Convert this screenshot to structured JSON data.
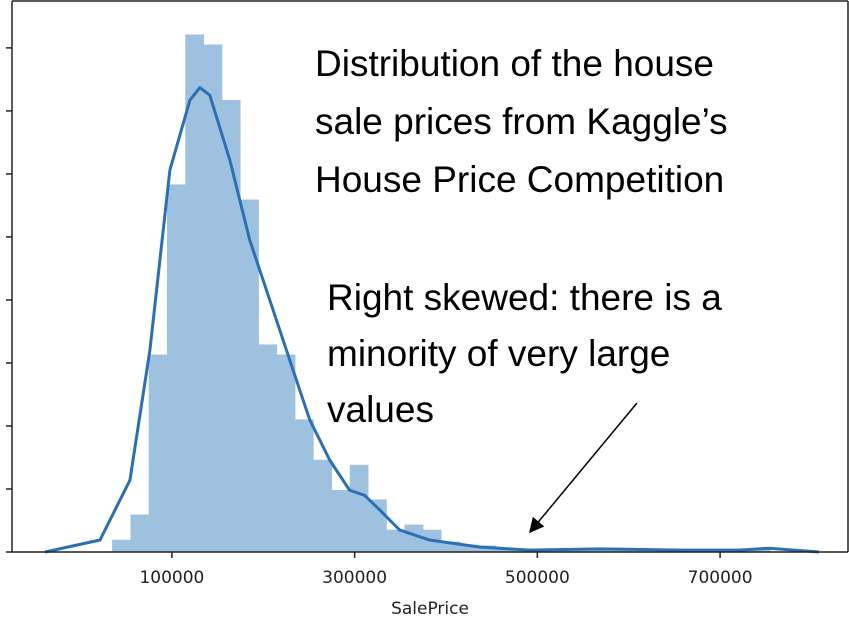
{
  "chart_data": {
    "type": "histogram",
    "xlabel": "SalePrice",
    "bins": [
      34900,
      54900,
      74900,
      94900,
      114900,
      134900,
      154900,
      174900,
      194900,
      214900,
      234900,
      254900,
      274900,
      294900,
      314900,
      334900,
      354900,
      374900,
      394900,
      414900,
      434900,
      454900,
      474900,
      494900,
      514900,
      534900,
      554900,
      574900,
      594900,
      614900,
      634900,
      654900,
      674900,
      694900,
      714900,
      734900,
      754900
    ],
    "values": [
      1.9e-07,
      5.9e-07,
      3.13e-06,
      5.83e-06,
      8.21e-06,
      8.05e-06,
      7.17e-06,
      5.59e-06,
      3.29e-06,
      3.13e-06,
      2.1e-06,
      1.46e-06,
      9.8e-07,
      1.38e-06,
      8.3e-07,
      3.5e-07,
      4.3e-07,
      3.5e-07,
      1.6e-07,
      1.1e-07,
      1e-07,
      6e-08,
      5e-08,
      3e-08,
      3e-08,
      3e-08,
      2e-08,
      2e-08,
      2e-08,
      2e-08,
      2e-08,
      2e-08,
      2e-08,
      2e-08,
      2e-08,
      6e-08
    ],
    "color": "#9fc1e0",
    "kde": {
      "color": "#2b70b2",
      "x": [
        -38800,
        21300,
        54100,
        76000,
        97800,
        119700,
        130600,
        141500,
        163400,
        185200,
        207100,
        228900,
        250800,
        272700,
        294500,
        310900,
        327300,
        349200,
        382000,
        436600,
        491300,
        567800,
        655200,
        720800,
        753600,
        808200
      ],
      "values": [
        0,
        1.9e-07,
        1.14e-06,
        3.21e-06,
        6.06e-06,
        7.17e-06,
        7.37e-06,
        7.25e-06,
        6.22e-06,
        4.95e-06,
        4e-06,
        3.05e-06,
        2.1e-06,
        1.46e-06,
        9.8e-07,
        9e-07,
        6.7e-07,
        3.5e-07,
        1.9e-07,
        8e-08,
        3e-08,
        5e-08,
        3e-08,
        3e-08,
        6e-08,
        0
      ]
    },
    "xlim": [
      -75000,
      840000
    ],
    "xticks": [
      100000,
      300000,
      500000,
      700000
    ],
    "ylim": [
      0,
      8.76e-06
    ],
    "yticks": [
      0,
      1e-06,
      2e-06,
      3e-06,
      4e-06,
      5e-06,
      6e-06,
      7e-06,
      8e-06
    ],
    "annotations": [
      {
        "lines": [
          "Distribution of the house",
          "sale prices from Kaggle’s",
          "House Price Competition"
        ]
      },
      {
        "lines": [
          "Right skewed: there is a",
          "minority of very large",
          "values"
        ]
      }
    ]
  }
}
